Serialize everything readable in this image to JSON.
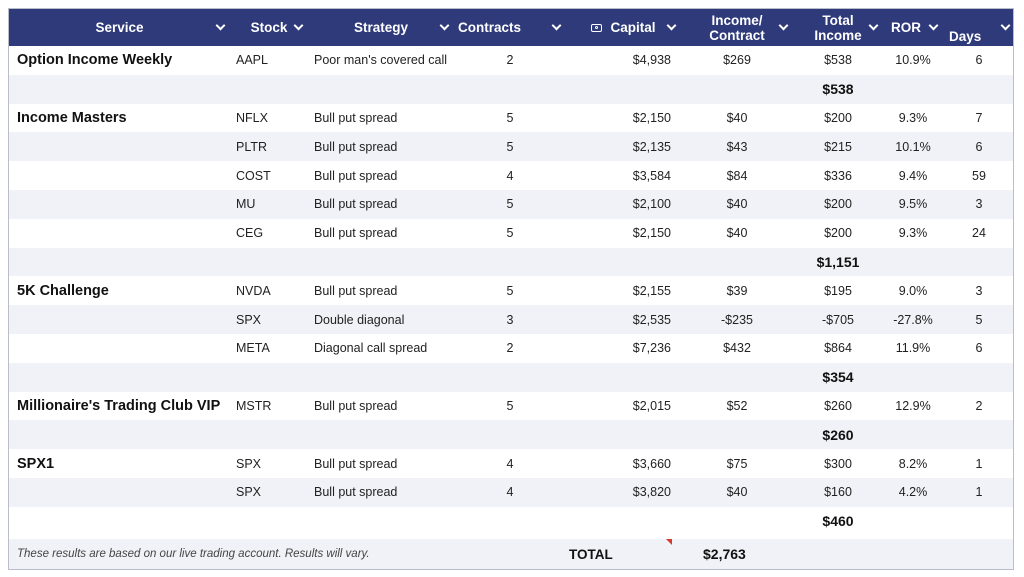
{
  "headers": {
    "service": "Service",
    "stock": "Stock",
    "strategy": "Strategy",
    "contracts": "Contracts",
    "capital": "Capital",
    "income_contract_1": "Income/",
    "income_contract_2": "Contract",
    "total_income_1": "Total",
    "total_income_2": "Income",
    "ror": "ROR",
    "days": "Days"
  },
  "groups": [
    {
      "service": "Option Income Weekly",
      "rows": [
        {
          "stock": "AAPL",
          "strategy": "Poor man's covered call",
          "contracts": "2",
          "capital": "$4,938",
          "income_contract": "$269",
          "total_income": "$538",
          "ror": "10.9%",
          "days": "6"
        }
      ],
      "subtotal": "$538"
    },
    {
      "service": "Income Masters",
      "rows": [
        {
          "stock": "NFLX",
          "strategy": "Bull put spread",
          "contracts": "5",
          "capital": "$2,150",
          "income_contract": "$40",
          "total_income": "$200",
          "ror": "9.3%",
          "days": "7"
        },
        {
          "stock": "PLTR",
          "strategy": "Bull put spread",
          "contracts": "5",
          "capital": "$2,135",
          "income_contract": "$43",
          "total_income": "$215",
          "ror": "10.1%",
          "days": "6"
        },
        {
          "stock": "COST",
          "strategy": "Bull put spread",
          "contracts": "4",
          "capital": "$3,584",
          "income_contract": "$84",
          "total_income": "$336",
          "ror": "9.4%",
          "days": "59"
        },
        {
          "stock": "MU",
          "strategy": "Bull put spread",
          "contracts": "5",
          "capital": "$2,100",
          "income_contract": "$40",
          "total_income": "$200",
          "ror": "9.5%",
          "days": "3"
        },
        {
          "stock": "CEG",
          "strategy": "Bull put spread",
          "contracts": "5",
          "capital": "$2,150",
          "income_contract": "$40",
          "total_income": "$200",
          "ror": "9.3%",
          "days": "24"
        }
      ],
      "subtotal": "$1,151"
    },
    {
      "service": "5K Challenge",
      "rows": [
        {
          "stock": "NVDA",
          "strategy": "Bull put spread",
          "contracts": "5",
          "capital": "$2,155",
          "income_contract": "$39",
          "total_income": "$195",
          "ror": "9.0%",
          "days": "3"
        },
        {
          "stock": "SPX",
          "strategy": "Double diagonal",
          "contracts": "3",
          "capital": "$2,535",
          "income_contract": "-$235",
          "total_income": "-$705",
          "ror": "-27.8%",
          "days": "5"
        },
        {
          "stock": "META",
          "strategy": "Diagonal call spread",
          "contracts": "2",
          "capital": "$7,236",
          "income_contract": "$432",
          "total_income": "$864",
          "ror": "11.9%",
          "days": "6"
        }
      ],
      "subtotal": "$354"
    },
    {
      "service": "Millionaire's Trading Club VIP",
      "rows": [
        {
          "stock": "MSTR",
          "strategy": "Bull put spread",
          "contracts": "5",
          "capital": "$2,015",
          "income_contract": "$52",
          "total_income": "$260",
          "ror": "12.9%",
          "days": "2"
        }
      ],
      "subtotal": "$260"
    },
    {
      "service": "SPX1",
      "rows": [
        {
          "stock": "SPX",
          "strategy": "Bull put spread",
          "contracts": "4",
          "capital": "$3,660",
          "income_contract": "$75",
          "total_income": "$300",
          "ror": "8.2%",
          "days": "1"
        },
        {
          "stock": "SPX",
          "strategy": "Bull put spread",
          "contracts": "4",
          "capital": "$3,820",
          "income_contract": "$40",
          "total_income": "$160",
          "ror": "4.2%",
          "days": "1"
        }
      ],
      "subtotal": "$460"
    }
  ],
  "footer": {
    "disclaimer": "These results are based on our live trading account. Results will vary.",
    "total_label": "TOTAL",
    "total_value": "$2,763"
  },
  "colors": {
    "header_bg": "#2e3a7a",
    "stripe": "#f1f2f7",
    "note_marker": "#d23a2a"
  }
}
